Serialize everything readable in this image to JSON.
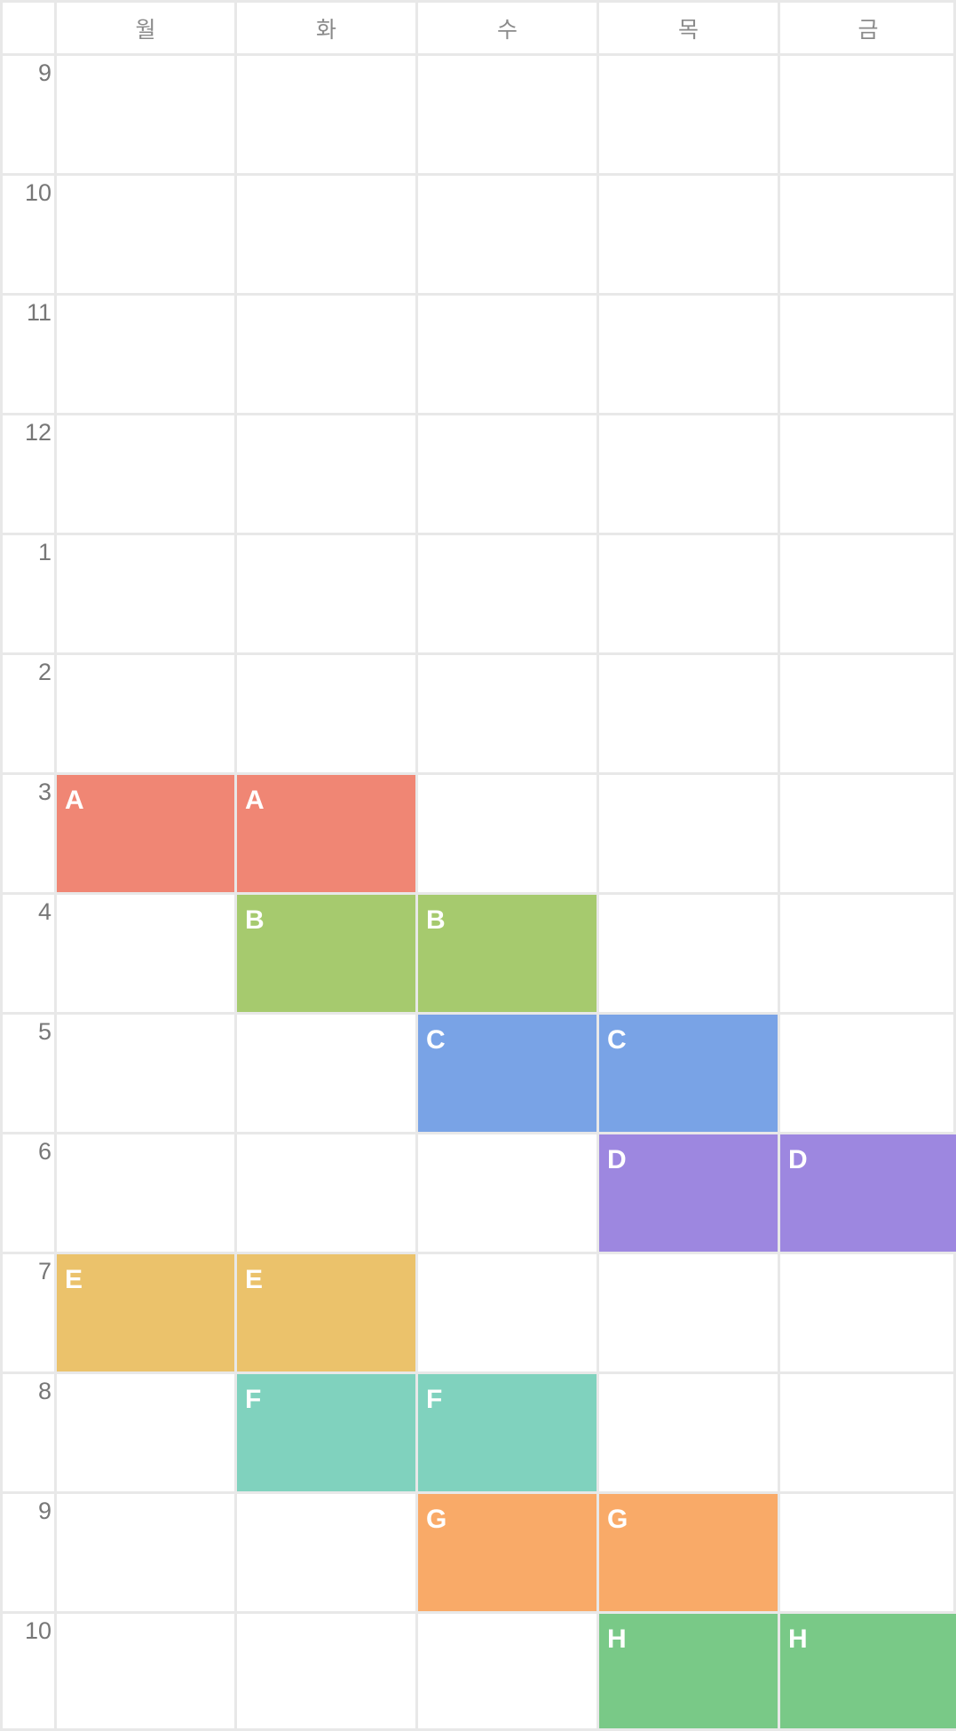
{
  "days": [
    "월",
    "화",
    "수",
    "목",
    "금"
  ],
  "hours": [
    "9",
    "10",
    "11",
    "12",
    "1",
    "2",
    "3",
    "4",
    "5",
    "6",
    "7",
    "8",
    "9",
    "10"
  ],
  "colors": {
    "A": "#f08674",
    "B": "#a6ca6e",
    "C": "#79a3e6",
    "D": "#9d87e0",
    "E": "#ebc26b",
    "F": "#80d2be",
    "G": "#f9aa68",
    "H": "#79c987",
    "grid": "#e8e8e8"
  },
  "classes": [
    {
      "label": "A",
      "day": 0,
      "hour": 6
    },
    {
      "label": "A",
      "day": 1,
      "hour": 6
    },
    {
      "label": "B",
      "day": 1,
      "hour": 7
    },
    {
      "label": "B",
      "day": 2,
      "hour": 7
    },
    {
      "label": "C",
      "day": 2,
      "hour": 8
    },
    {
      "label": "C",
      "day": 3,
      "hour": 8
    },
    {
      "label": "D",
      "day": 3,
      "hour": 9
    },
    {
      "label": "D",
      "day": 4,
      "hour": 9
    },
    {
      "label": "E",
      "day": 0,
      "hour": 10
    },
    {
      "label": "E",
      "day": 1,
      "hour": 10
    },
    {
      "label": "F",
      "day": 1,
      "hour": 11
    },
    {
      "label": "F",
      "day": 2,
      "hour": 11
    },
    {
      "label": "G",
      "day": 2,
      "hour": 12
    },
    {
      "label": "G",
      "day": 3,
      "hour": 12
    },
    {
      "label": "H",
      "day": 3,
      "hour": 13
    },
    {
      "label": "H",
      "day": 4,
      "hour": 13
    }
  ]
}
